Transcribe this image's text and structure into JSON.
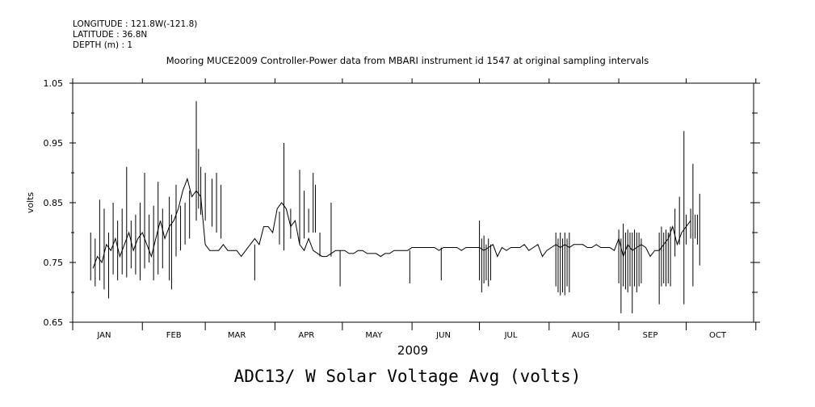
{
  "header": {
    "longitude": "LONGITUDE : 121.8W(-121.8)",
    "latitude": "LATITUDE : 36.8N",
    "depth": "DEPTH (m) : 1"
  },
  "chart_data": {
    "type": "line",
    "title": "Mooring MUCE2009 Controller-Power data from MBARI instrument id 1547 at original sampling intervals",
    "caption": "ADC13/ W Solar Voltage Avg (volts)",
    "xlabel": "2009",
    "ylabel": "volts",
    "ylim": [
      0.65,
      1.05
    ],
    "yticks": [
      0.65,
      0.75,
      0.85,
      0.95,
      1.05
    ],
    "ytick_labels": [
      "0.65",
      "0.75",
      "0.85",
      "0.95",
      "1.05"
    ],
    "xlim": [
      "2009-01-01",
      "2009-10-31"
    ],
    "month_labels": [
      "JAN",
      "FEB",
      "MAR",
      "APR",
      "MAY",
      "JUN",
      "JUL",
      "AUG",
      "SEP",
      "OCT"
    ],
    "grid": false,
    "series": [
      {
        "color": "#000000",
        "segments": [
          {
            "x": [
              "2009-01-10",
              "2009-01-12",
              "2009-01-14",
              "2009-01-16",
              "2009-01-18",
              "2009-01-20",
              "2009-01-22",
              "2009-01-24",
              "2009-01-26",
              "2009-01-28",
              "2009-01-30",
              "2009-02-01",
              "2009-02-03",
              "2009-02-05",
              "2009-02-07",
              "2009-02-09",
              "2009-02-11",
              "2009-02-13",
              "2009-02-15",
              "2009-02-17",
              "2009-02-19",
              "2009-02-21",
              "2009-02-23",
              "2009-02-25",
              "2009-02-27",
              "2009-03-01",
              "2009-03-03",
              "2009-03-05",
              "2009-03-07",
              "2009-03-09",
              "2009-03-11",
              "2009-03-13",
              "2009-03-15",
              "2009-03-17",
              "2009-03-19",
              "2009-03-21",
              "2009-03-23",
              "2009-03-25",
              "2009-03-27",
              "2009-03-29",
              "2009-03-31",
              "2009-04-02",
              "2009-04-04",
              "2009-04-06",
              "2009-04-08",
              "2009-04-10",
              "2009-04-12",
              "2009-04-14",
              "2009-04-16",
              "2009-04-18",
              "2009-04-20",
              "2009-04-22",
              "2009-04-24",
              "2009-04-26",
              "2009-04-28",
              "2009-04-30",
              "2009-05-02",
              "2009-05-04",
              "2009-05-06",
              "2009-05-08",
              "2009-05-10",
              "2009-05-12",
              "2009-05-14",
              "2009-05-16",
              "2009-05-18",
              "2009-05-20",
              "2009-05-22",
              "2009-05-24",
              "2009-05-26",
              "2009-05-28",
              "2009-05-30",
              "2009-06-01",
              "2009-06-03",
              "2009-06-05",
              "2009-06-07",
              "2009-06-09",
              "2009-06-11",
              "2009-06-13",
              "2009-06-15",
              "2009-06-17",
              "2009-06-19",
              "2009-06-21",
              "2009-06-23",
              "2009-06-25",
              "2009-06-27",
              "2009-06-29",
              "2009-07-01",
              "2009-07-03",
              "2009-07-05",
              "2009-07-07",
              "2009-07-09",
              "2009-07-11",
              "2009-07-13",
              "2009-07-15",
              "2009-07-17",
              "2009-07-19",
              "2009-07-21",
              "2009-07-23",
              "2009-07-25",
              "2009-07-27",
              "2009-07-29",
              "2009-07-31",
              "2009-08-02",
              "2009-08-04",
              "2009-08-06",
              "2009-08-08",
              "2009-08-10",
              "2009-08-12",
              "2009-08-14",
              "2009-08-16",
              "2009-08-18",
              "2009-08-20",
              "2009-08-22",
              "2009-08-24",
              "2009-08-26",
              "2009-08-28",
              "2009-08-30",
              "2009-09-01",
              "2009-09-03",
              "2009-09-05",
              "2009-09-07",
              "2009-09-09",
              "2009-09-11",
              "2009-09-13",
              "2009-09-15",
              "2009-09-17",
              "2009-09-19",
              "2009-09-21",
              "2009-09-23",
              "2009-09-25",
              "2009-09-27",
              "2009-09-29",
              "2009-10-01",
              "2009-10-03"
            ],
            "y": [
              0.74,
              0.76,
              0.75,
              0.78,
              0.77,
              0.79,
              0.76,
              0.78,
              0.8,
              0.77,
              0.79,
              0.8,
              0.78,
              0.76,
              0.79,
              0.82,
              0.79,
              0.81,
              0.82,
              0.84,
              0.87,
              0.89,
              0.86,
              0.87,
              0.86,
              0.78,
              0.77,
              0.77,
              0.77,
              0.78,
              0.77,
              0.77,
              0.77,
              0.76,
              0.77,
              0.78,
              0.79,
              0.78,
              0.81,
              0.81,
              0.8,
              0.84,
              0.85,
              0.84,
              0.81,
              0.82,
              0.78,
              0.77,
              0.79,
              0.77,
              0.765,
              0.76,
              0.76,
              0.765,
              0.77,
              0.77,
              0.77,
              0.765,
              0.765,
              0.77,
              0.77,
              0.765,
              0.765,
              0.765,
              0.76,
              0.765,
              0.765,
              0.77,
              0.77,
              0.77,
              0.77,
              0.775,
              0.775,
              0.775,
              0.775,
              0.775,
              0.775,
              0.77,
              0.775,
              0.775,
              0.775,
              0.775,
              0.77,
              0.775,
              0.775,
              0.775,
              0.775,
              0.77,
              0.775,
              0.78,
              0.76,
              0.775,
              0.77,
              0.775,
              0.775,
              0.775,
              0.78,
              0.77,
              0.775,
              0.78,
              0.76,
              0.77,
              0.775,
              0.78,
              0.775,
              0.78,
              0.775,
              0.78,
              0.78,
              0.78,
              0.775,
              0.775,
              0.78,
              0.775,
              0.775,
              0.775,
              0.77,
              0.79,
              0.76,
              0.78,
              0.77,
              0.775,
              0.78,
              0.775,
              0.76,
              0.77,
              0.77,
              0.78,
              0.79,
              0.81,
              0.78,
              0.8,
              0.81,
              0.82
            ]
          }
        ],
        "spikes": [
          {
            "x": "2009-01-09",
            "y1": 0.72,
            "y2": 0.8
          },
          {
            "x": "2009-01-11",
            "y1": 0.71,
            "y2": 0.79
          },
          {
            "x": "2009-01-13",
            "y1": 0.72,
            "y2": 0.855
          },
          {
            "x": "2009-01-15",
            "y1": 0.705,
            "y2": 0.84
          },
          {
            "x": "2009-01-17",
            "y1": 0.69,
            "y2": 0.8
          },
          {
            "x": "2009-01-19",
            "y1": 0.73,
            "y2": 0.85
          },
          {
            "x": "2009-01-21",
            "y1": 0.72,
            "y2": 0.82
          },
          {
            "x": "2009-01-23",
            "y1": 0.73,
            "y2": 0.84
          },
          {
            "x": "2009-01-25",
            "y1": 0.725,
            "y2": 0.91
          },
          {
            "x": "2009-01-27",
            "y1": 0.74,
            "y2": 0.82
          },
          {
            "x": "2009-01-29",
            "y1": 0.73,
            "y2": 0.83
          },
          {
            "x": "2009-01-31",
            "y1": 0.72,
            "y2": 0.85
          },
          {
            "x": "2009-02-02",
            "y1": 0.74,
            "y2": 0.9
          },
          {
            "x": "2009-02-04",
            "y1": 0.75,
            "y2": 0.83
          },
          {
            "x": "2009-02-06",
            "y1": 0.72,
            "y2": 0.845
          },
          {
            "x": "2009-02-08",
            "y1": 0.73,
            "y2": 0.885
          },
          {
            "x": "2009-02-10",
            "y1": 0.74,
            "y2": 0.84
          },
          {
            "x": "2009-02-13",
            "y1": 0.72,
            "y2": 0.86
          },
          {
            "x": "2009-02-14",
            "y1": 0.705,
            "y2": 0.83
          },
          {
            "x": "2009-02-16",
            "y1": 0.76,
            "y2": 0.88
          },
          {
            "x": "2009-02-18",
            "y1": 0.77,
            "y2": 0.845
          },
          {
            "x": "2009-02-20",
            "y1": 0.78,
            "y2": 0.85
          },
          {
            "x": "2009-02-22",
            "y1": 0.79,
            "y2": 0.87
          },
          {
            "x": "2009-02-25",
            "y1": 0.82,
            "y2": 1.02
          },
          {
            "x": "2009-02-26",
            "y1": 0.84,
            "y2": 0.94
          },
          {
            "x": "2009-02-27",
            "y1": 0.83,
            "y2": 0.91
          },
          {
            "x": "2009-03-01",
            "y1": 0.82,
            "y2": 0.9
          },
          {
            "x": "2009-03-04",
            "y1": 0.81,
            "y2": 0.89
          },
          {
            "x": "2009-03-06",
            "y1": 0.8,
            "y2": 0.9
          },
          {
            "x": "2009-03-08",
            "y1": 0.79,
            "y2": 0.88
          },
          {
            "x": "2009-03-23",
            "y1": 0.72,
            "y2": 0.78
          },
          {
            "x": "2009-04-03",
            "y1": 0.78,
            "y2": 0.835
          },
          {
            "x": "2009-04-05",
            "y1": 0.77,
            "y2": 0.95
          },
          {
            "x": "2009-04-08",
            "y1": 0.79,
            "y2": 0.84
          },
          {
            "x": "2009-04-12",
            "y1": 0.78,
            "y2": 0.905
          },
          {
            "x": "2009-04-14",
            "y1": 0.79,
            "y2": 0.87
          },
          {
            "x": "2009-04-16",
            "y1": 0.8,
            "y2": 0.84
          },
          {
            "x": "2009-04-18",
            "y1": 0.8,
            "y2": 0.9
          },
          {
            "x": "2009-04-19",
            "y1": 0.8,
            "y2": 0.88
          },
          {
            "x": "2009-04-21",
            "y1": 0.76,
            "y2": 0.8
          },
          {
            "x": "2009-04-26",
            "y1": 0.76,
            "y2": 0.85
          },
          {
            "x": "2009-04-30",
            "y1": 0.71,
            "y2": 0.77
          },
          {
            "x": "2009-05-31",
            "y1": 0.715,
            "y2": 0.77
          },
          {
            "x": "2009-06-14",
            "y1": 0.72,
            "y2": 0.775
          },
          {
            "x": "2009-07-01",
            "y1": 0.72,
            "y2": 0.82
          },
          {
            "x": "2009-07-02",
            "y1": 0.7,
            "y2": 0.79
          },
          {
            "x": "2009-07-03",
            "y1": 0.715,
            "y2": 0.795
          },
          {
            "x": "2009-07-04",
            "y1": 0.72,
            "y2": 0.78
          },
          {
            "x": "2009-07-05",
            "y1": 0.71,
            "y2": 0.79
          },
          {
            "x": "2009-07-06",
            "y1": 0.72,
            "y2": 0.78
          },
          {
            "x": "2009-08-04",
            "y1": 0.71,
            "y2": 0.8
          },
          {
            "x": "2009-08-05",
            "y1": 0.7,
            "y2": 0.79
          },
          {
            "x": "2009-08-06",
            "y1": 0.695,
            "y2": 0.8
          },
          {
            "x": "2009-08-07",
            "y1": 0.7,
            "y2": 0.79
          },
          {
            "x": "2009-08-08",
            "y1": 0.695,
            "y2": 0.8
          },
          {
            "x": "2009-08-09",
            "y1": 0.71,
            "y2": 0.79
          },
          {
            "x": "2009-08-10",
            "y1": 0.7,
            "y2": 0.8
          },
          {
            "x": "2009-09-01",
            "y1": 0.715,
            "y2": 0.805
          },
          {
            "x": "2009-09-02",
            "y1": 0.665,
            "y2": 0.79
          },
          {
            "x": "2009-09-03",
            "y1": 0.71,
            "y2": 0.815
          },
          {
            "x": "2009-09-04",
            "y1": 0.705,
            "y2": 0.8
          },
          {
            "x": "2009-09-05",
            "y1": 0.7,
            "y2": 0.805
          },
          {
            "x": "2009-09-06",
            "y1": 0.71,
            "y2": 0.8
          },
          {
            "x": "2009-09-07",
            "y1": 0.665,
            "y2": 0.8
          },
          {
            "x": "2009-09-08",
            "y1": 0.71,
            "y2": 0.805
          },
          {
            "x": "2009-09-09",
            "y1": 0.7,
            "y2": 0.8
          },
          {
            "x": "2009-09-10",
            "y1": 0.71,
            "y2": 0.8
          },
          {
            "x": "2009-09-11",
            "y1": 0.715,
            "y2": 0.79
          },
          {
            "x": "2009-09-19",
            "y1": 0.68,
            "y2": 0.8
          },
          {
            "x": "2009-09-20",
            "y1": 0.71,
            "y2": 0.81
          },
          {
            "x": "2009-09-21",
            "y1": 0.715,
            "y2": 0.8
          },
          {
            "x": "2009-09-22",
            "y1": 0.71,
            "y2": 0.805
          },
          {
            "x": "2009-09-23",
            "y1": 0.715,
            "y2": 0.8
          },
          {
            "x": "2009-09-24",
            "y1": 0.71,
            "y2": 0.81
          },
          {
            "x": "2009-09-26",
            "y1": 0.76,
            "y2": 0.84
          },
          {
            "x": "2009-09-28",
            "y1": 0.78,
            "y2": 0.86
          },
          {
            "x": "2009-09-30",
            "y1": 0.68,
            "y2": 0.97
          },
          {
            "x": "2009-10-01",
            "y1": 0.78,
            "y2": 0.83
          },
          {
            "x": "2009-10-03",
            "y1": 0.79,
            "y2": 0.84
          },
          {
            "x": "2009-10-04",
            "y1": 0.71,
            "y2": 0.915
          },
          {
            "x": "2009-10-05",
            "y1": 0.79,
            "y2": 0.83
          },
          {
            "x": "2009-10-06",
            "y1": 0.78,
            "y2": 0.83
          },
          {
            "x": "2009-10-07",
            "y1": 0.745,
            "y2": 0.865
          }
        ]
      }
    ]
  }
}
